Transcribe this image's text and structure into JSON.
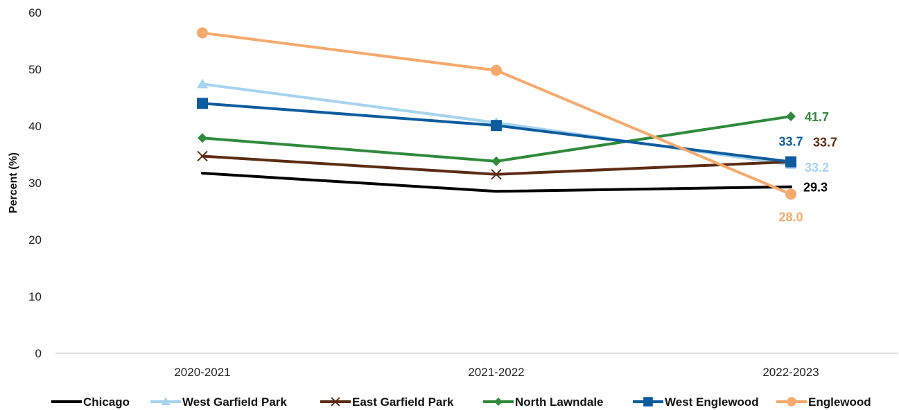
{
  "chart_data": {
    "type": "line",
    "title": "",
    "xlabel": "",
    "ylabel": "Percent (%)",
    "ylim": [
      0,
      60
    ],
    "yticks": [
      0,
      10,
      20,
      30,
      40,
      50,
      60
    ],
    "categories": [
      "2020-2021",
      "2021-2022",
      "2022-2023"
    ],
    "grid": false,
    "legend_position": "bottom",
    "series": [
      {
        "name": "Chicago",
        "color": "#000000",
        "marker": "none",
        "values": [
          31.7,
          28.5,
          29.3
        ],
        "end_label": "29.3"
      },
      {
        "name": "West Garfield Park",
        "color": "#a6d3ee",
        "marker": "triangle",
        "values": [
          47.4,
          40.6,
          33.2
        ],
        "end_label": "33.2"
      },
      {
        "name": "East Garfield Park",
        "color": "#5c2c14",
        "marker": "x",
        "values": [
          34.7,
          31.5,
          33.7
        ],
        "end_label": "33.7"
      },
      {
        "name": "North Lawndale",
        "color": "#2f8a3b",
        "marker": "diamond",
        "values": [
          37.9,
          33.8,
          41.7
        ],
        "end_label": "41.7"
      },
      {
        "name": "West Englewood",
        "color": "#0e5c9e",
        "marker": "square",
        "values": [
          44.0,
          40.1,
          33.7
        ],
        "end_label": "33.7"
      },
      {
        "name": "Englewood",
        "color": "#f6a96c",
        "marker": "circle",
        "values": [
          56.4,
          49.8,
          28.0
        ],
        "end_label": "28.0"
      }
    ]
  }
}
